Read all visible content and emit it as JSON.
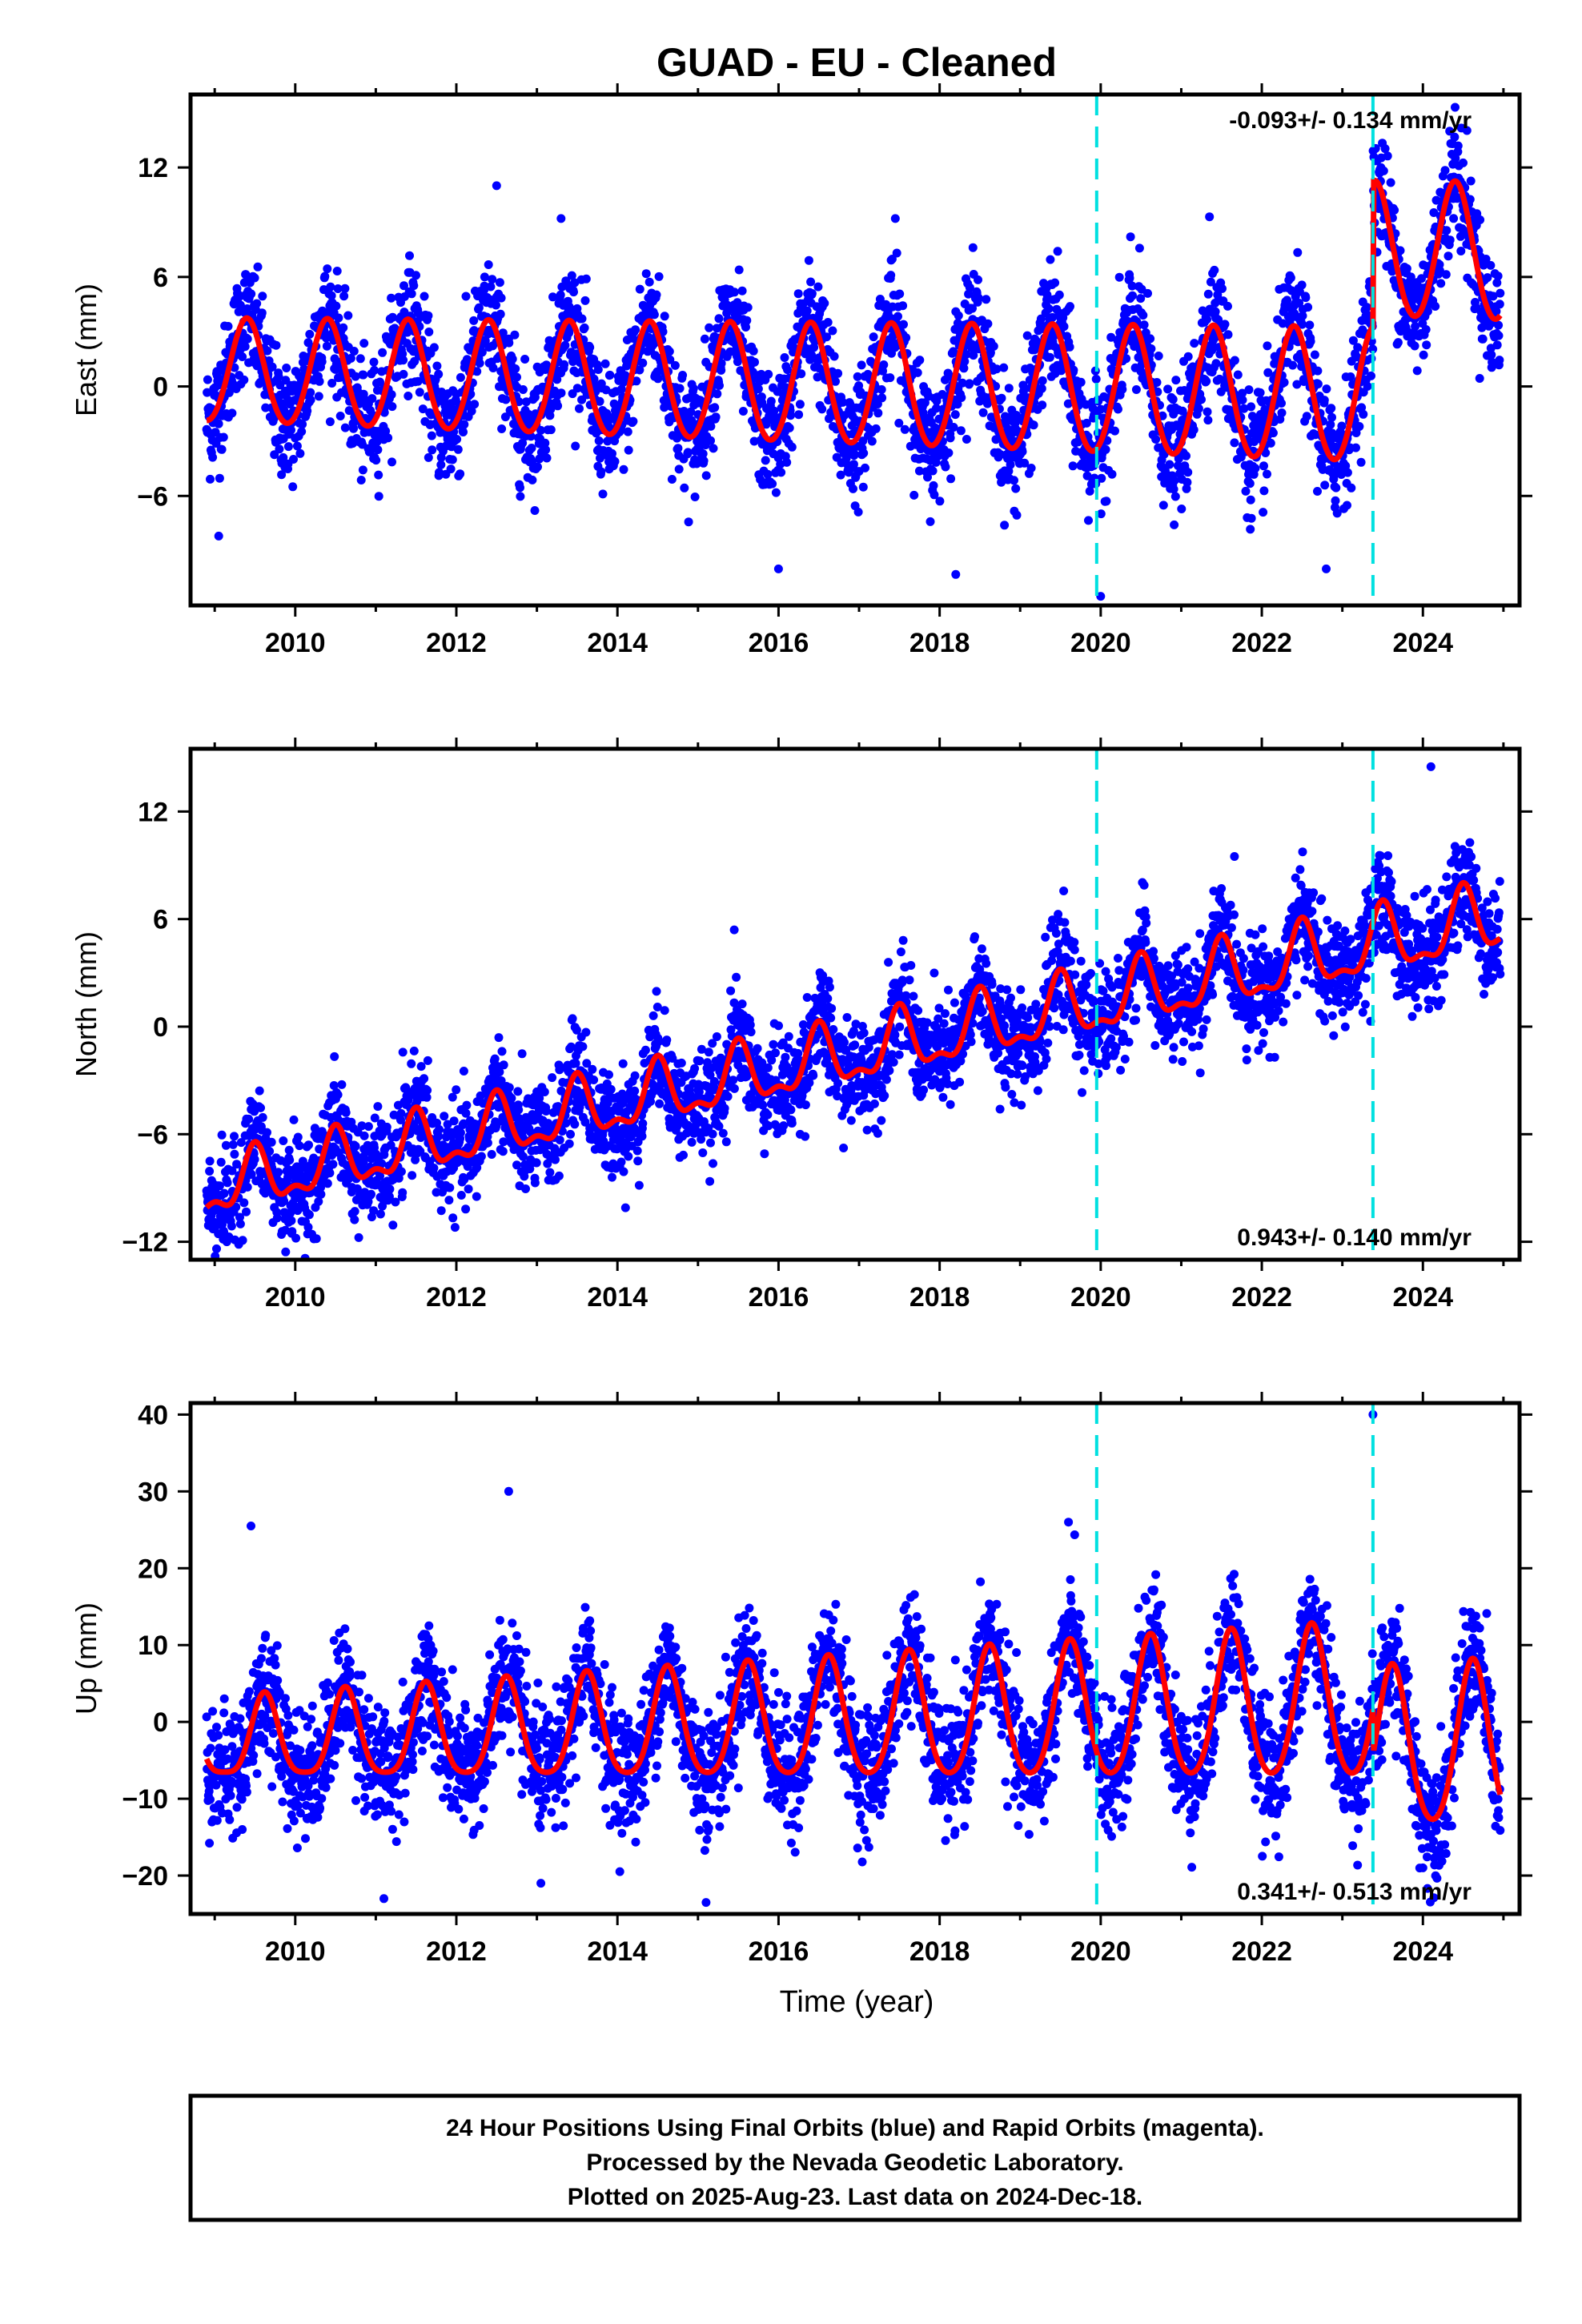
{
  "title": "GUAD  - EU - Cleaned",
  "colors": {
    "points": "#0000ff",
    "model": "#ff0000",
    "steps": "#00e0e0",
    "frame": "#000000"
  },
  "footer": {
    "line1": "24 Hour Positions Using Final Orbits (blue) and Rapid Orbits (magenta).",
    "line2": "Processed by the Nevada Geodetic Laboratory.",
    "line3": "Plotted on 2025-Aug-23. Last data on 2024-Dec-18."
  },
  "chart_data": [
    {
      "type": "scatter",
      "component": "east",
      "ylabel": "East (mm)",
      "xlabel": "",
      "rate_label": "-0.093+/- 0.134 mm/yr",
      "rate_position": "top-right",
      "xlim": [
        2008.7,
        2025.2
      ],
      "ylim": [
        -12,
        16
      ],
      "xticks": [
        2010,
        2012,
        2014,
        2016,
        2018,
        2020,
        2022,
        2024
      ],
      "yticks": [
        -6,
        0,
        6,
        12
      ],
      "step_epochs": [
        2019.95,
        2023.38
      ],
      "data_range": [
        2008.9,
        2024.96
      ],
      "model": {
        "offset": 0,
        "trend": -0.093,
        "ref_epoch": 2017,
        "annual_amp": 3.3,
        "annual_phase": 2009.4,
        "annual_amp_rate": 0.06,
        "semiannual_amp": 0.2,
        "steps": [
          {
            "epoch": 2023.38,
            "size": 8.0
          }
        ]
      },
      "scatter_sigma": 1.6,
      "outliers": [
        [
          2012.5,
          11
        ],
        [
          2013.3,
          9.2
        ],
        [
          2017.45,
          9.2
        ],
        [
          2020.37,
          8.2
        ],
        [
          2021.35,
          9.3
        ],
        [
          2024.4,
          15.3
        ],
        [
          2016.0,
          -10.0
        ],
        [
          2018.2,
          -10.3
        ],
        [
          2020.0,
          -11.5
        ],
        [
          2022.8,
          -10.0
        ],
        [
          2009.05,
          -8.2
        ]
      ]
    },
    {
      "type": "scatter",
      "component": "north",
      "ylabel": "North (mm)",
      "xlabel": "",
      "rate_label": "0.943+/- 0.140 mm/yr",
      "rate_position": "bottom-right",
      "xlim": [
        2008.7,
        2025.2
      ],
      "ylim": [
        -13,
        15.5
      ],
      "xticks": [
        2010,
        2012,
        2014,
        2016,
        2018,
        2020,
        2022,
        2024
      ],
      "yticks": [
        -12,
        -6,
        0,
        6,
        12
      ],
      "step_epochs": [
        2019.95,
        2023.38
      ],
      "data_range": [
        2008.9,
        2024.96
      ],
      "model": {
        "offset": -1.5,
        "trend": 0.943,
        "ref_epoch": 2017,
        "annual_amp": 1.6,
        "annual_phase": 2009.5,
        "annual_amp_rate": 0.02,
        "semiannual_amp": 0.7,
        "steps": []
      },
      "scatter_sigma": 1.4,
      "outliers": [
        [
          2015.45,
          5.4
        ],
        [
          2018.75,
          -4.6
        ],
        [
          2023.35,
          0.3
        ],
        [
          2024.1,
          14.5
        ],
        [
          2014.1,
          -10.1
        ],
        [
          2009.15,
          -12
        ],
        [
          2024.8,
          3
        ]
      ]
    },
    {
      "type": "scatter",
      "component": "up",
      "ylabel": "Up (mm)",
      "xlabel": "Time (year)",
      "rate_label": "0.341+/- 0.513 mm/yr",
      "rate_position": "bottom-right",
      "xlim": [
        2008.7,
        2025.2
      ],
      "ylim": [
        -25,
        41.5
      ],
      "xticks": [
        2010,
        2012,
        2014,
        2016,
        2018,
        2020,
        2022,
        2024
      ],
      "yticks": [
        -20,
        -10,
        0,
        10,
        20,
        30,
        40
      ],
      "step_epochs": [
        2019.95,
        2023.38
      ],
      "data_range": [
        2008.9,
        2024.96
      ],
      "model": {
        "offset": 0,
        "trend": 0.341,
        "ref_epoch": 2017,
        "annual_amp": 7.8,
        "annual_phase": 2009.62,
        "annual_amp_rate": 0.35,
        "semiannual_amp": 1.2,
        "steps": [
          {
            "epoch": 2023.38,
            "size": -6.0
          }
        ]
      },
      "scatter_sigma": 4.0,
      "outliers": [
        [
          2012.65,
          30
        ],
        [
          2023.38,
          40
        ],
        [
          2011.1,
          -23
        ],
        [
          2013.05,
          -21
        ],
        [
          2015.1,
          -23.5
        ],
        [
          2009.45,
          25.5
        ],
        [
          2019.6,
          26
        ],
        [
          2024.0,
          -19
        ]
      ]
    }
  ]
}
